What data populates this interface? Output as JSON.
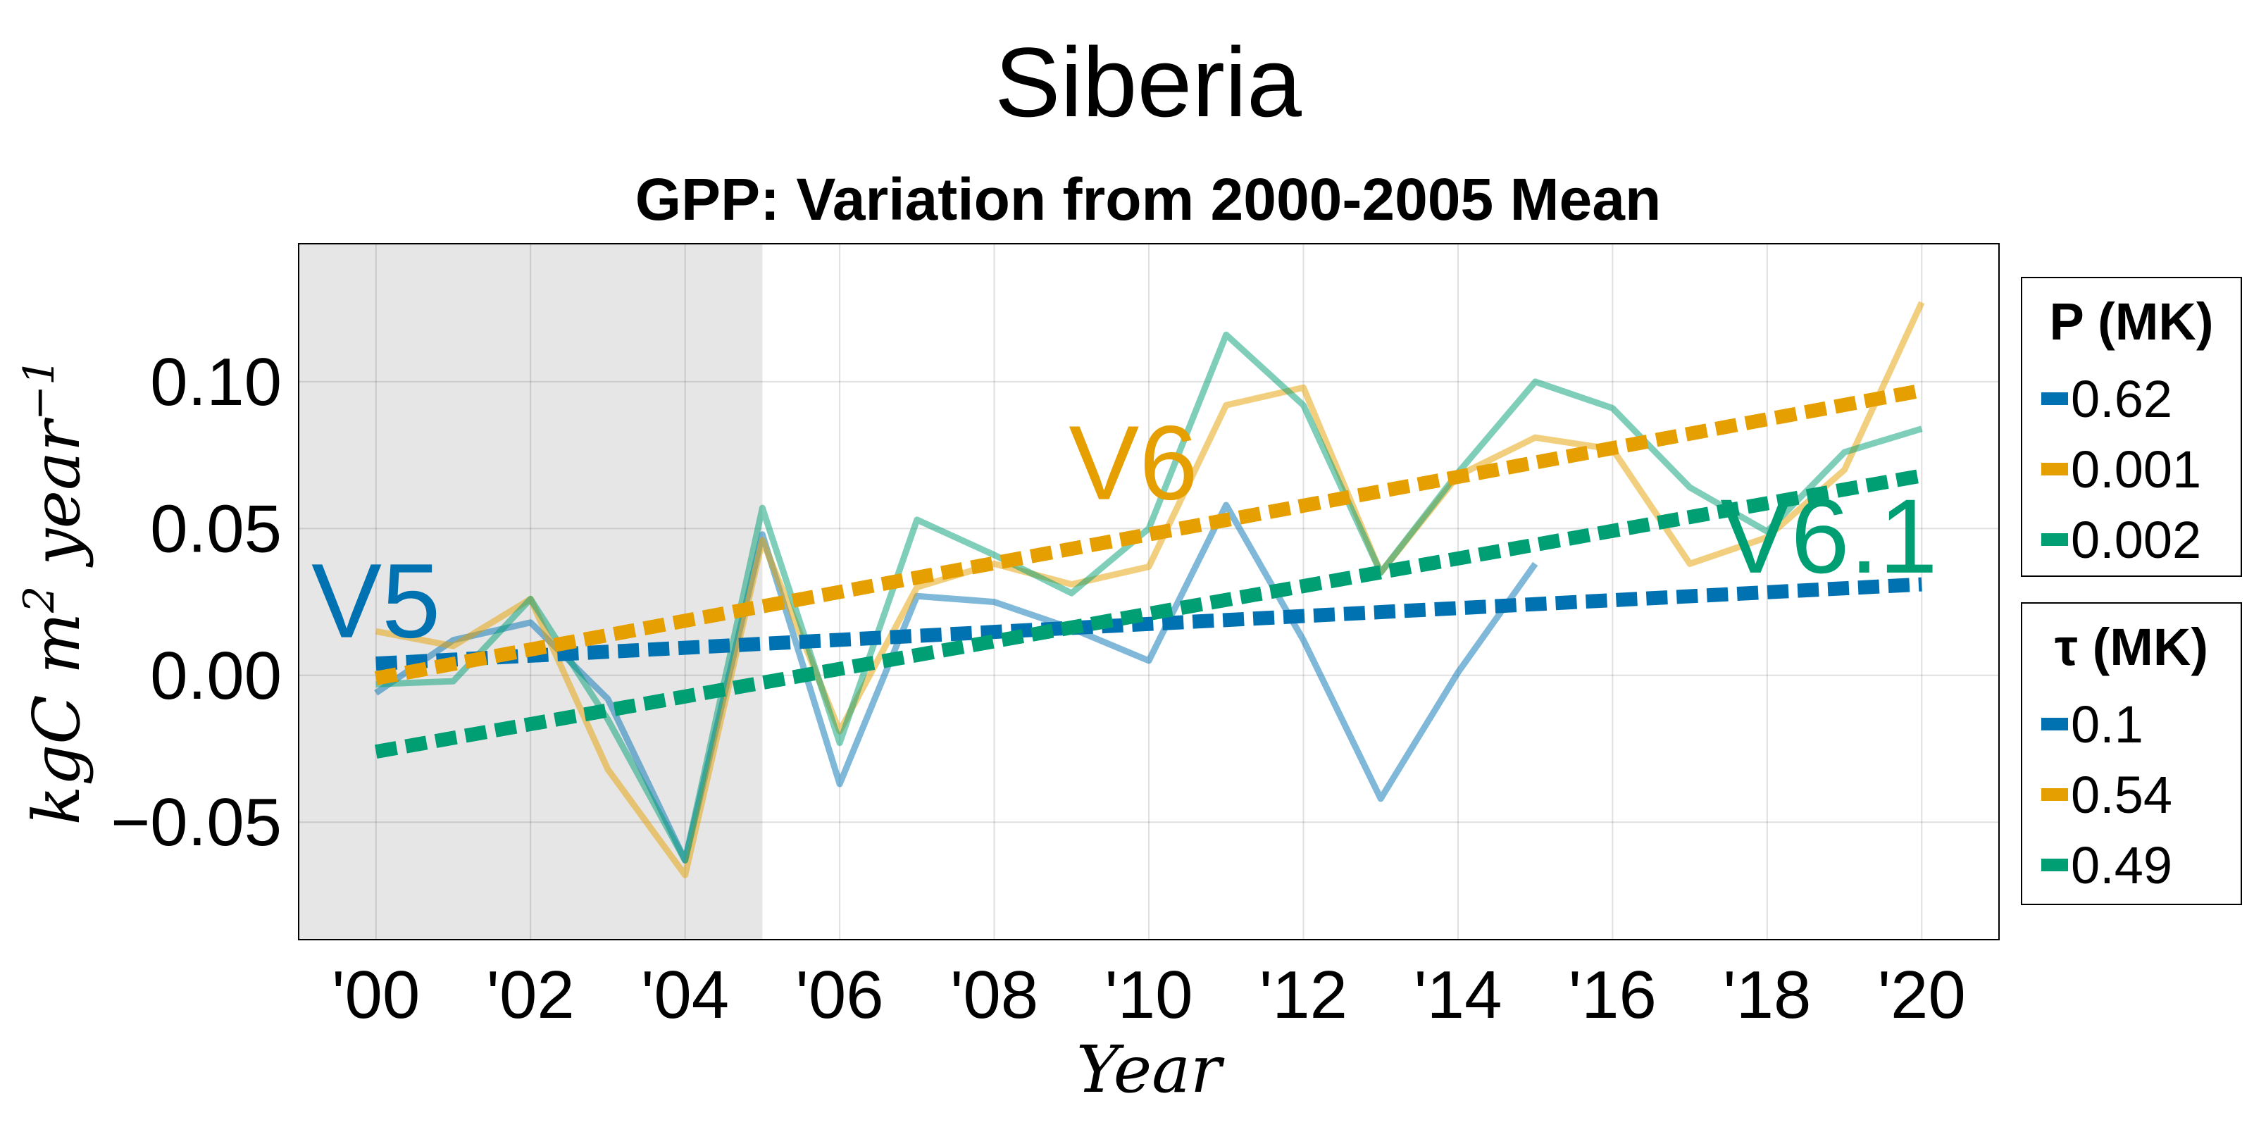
{
  "chart_data": {
    "type": "line",
    "suptitle": "Siberia",
    "title": "GPP: Variation from 2000-2005 Mean",
    "xlabel": "Year",
    "ylabel_main": "kgC m",
    "ylabel_sup1": "2",
    "ylabel_mid": " year",
    "ylabel_sup2": "−1",
    "xlim": [
      -1,
      21
    ],
    "ylim": [
      -0.09,
      0.147
    ],
    "xticks": [
      0,
      2,
      4,
      6,
      8,
      10,
      12,
      14,
      16,
      18,
      20
    ],
    "xtick_labels": [
      "'00",
      "'02",
      "'04",
      "'06",
      "'08",
      "'10",
      "'12",
      "'14",
      "'16",
      "'18",
      "'20"
    ],
    "yticks": [
      -0.05,
      0.0,
      0.05,
      0.1
    ],
    "ytick_labels": [
      "−0.05",
      "0.00",
      "0.05",
      "0.10"
    ],
    "grid": true,
    "baseline_period": [
      -1,
      5
    ],
    "baseline_color": "#e6e6e6",
    "series": [
      {
        "name": "V5",
        "color": "#0072b2",
        "x": [
          0,
          1,
          2,
          3,
          4,
          5,
          6,
          7,
          8,
          9,
          10,
          11,
          12,
          13,
          14,
          15
        ],
        "values": [
          -0.006,
          0.012,
          0.018,
          -0.008,
          -0.063,
          0.048,
          -0.037,
          0.027,
          0.025,
          0.016,
          0.005,
          0.058,
          0.012,
          -0.042,
          0.001,
          0.038
        ],
        "trend": [
          0.004,
          0.031
        ]
      },
      {
        "name": "V6",
        "color": "#e69f00",
        "x": [
          0,
          1,
          2,
          3,
          4,
          5,
          6,
          7,
          8,
          9,
          10,
          11,
          12,
          13,
          14,
          15,
          16,
          17,
          18,
          19,
          20
        ],
        "values": [
          0.015,
          0.01,
          0.026,
          -0.032,
          -0.068,
          0.046,
          -0.019,
          0.03,
          0.038,
          0.031,
          0.037,
          0.092,
          0.098,
          0.035,
          0.068,
          0.081,
          0.077,
          0.038,
          0.047,
          0.07,
          0.127
        ],
        "trend": [
          -0.001,
          0.097
        ]
      },
      {
        "name": "V6.1",
        "color": "#009e73",
        "x": [
          0,
          1,
          2,
          3,
          4,
          5,
          6,
          7,
          8,
          9,
          10,
          11,
          12,
          13,
          14,
          15,
          16,
          17,
          18,
          19,
          20
        ],
        "values": [
          -0.003,
          -0.002,
          0.026,
          -0.015,
          -0.063,
          0.057,
          -0.023,
          0.053,
          0.041,
          0.028,
          0.05,
          0.116,
          0.092,
          0.035,
          0.069,
          0.1,
          0.091,
          0.064,
          0.049,
          0.076,
          0.084
        ],
        "trend": [
          -0.026,
          0.068
        ]
      }
    ],
    "annotations": [
      {
        "text": "V5",
        "x": 0.0,
        "y": 0.013,
        "color": "#0072b2"
      },
      {
        "text": "V6",
        "x": 9.8,
        "y": 0.06,
        "color": "#e69f00"
      },
      {
        "text": "V6.1",
        "x": 18.8,
        "y": 0.035,
        "color": "#009e73"
      }
    ],
    "legends": [
      {
        "title": "P (MK)",
        "entries": [
          {
            "label": "0.62",
            "color": "#0072b2"
          },
          {
            "label": "0.001",
            "color": "#e69f00"
          },
          {
            "label": "0.002",
            "color": "#009e73"
          }
        ]
      },
      {
        "title": "τ (MK)",
        "entries": [
          {
            "label": "0.1",
            "color": "#0072b2"
          },
          {
            "label": "0.54",
            "color": "#e69f00"
          },
          {
            "label": "0.49",
            "color": "#009e73"
          }
        ]
      }
    ]
  }
}
